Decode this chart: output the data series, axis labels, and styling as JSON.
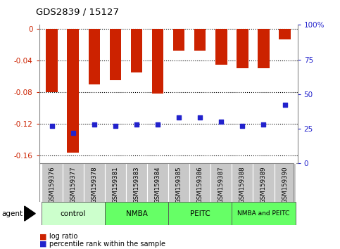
{
  "title": "GDS2839 / 15127",
  "samples": [
    "GSM159376",
    "GSM159377",
    "GSM159378",
    "GSM159381",
    "GSM159383",
    "GSM159384",
    "GSM159385",
    "GSM159386",
    "GSM159387",
    "GSM159388",
    "GSM159389",
    "GSM159390"
  ],
  "log_ratios": [
    -0.08,
    -0.157,
    -0.07,
    -0.065,
    -0.055,
    -0.082,
    -0.028,
    -0.028,
    -0.045,
    -0.05,
    -0.05,
    -0.013
  ],
  "percentile_ranks": [
    27,
    22,
    28,
    27,
    28,
    28,
    33,
    33,
    30,
    27,
    28,
    42
  ],
  "bar_color": "#CC2200",
  "dot_color": "#2222CC",
  "ylim_left": [
    -0.17,
    0.005
  ],
  "ylim_right": [
    0,
    100
  ],
  "yticks_left": [
    0.0,
    -0.04,
    -0.08,
    -0.12,
    -0.16
  ],
  "ytick_labels_left": [
    "0",
    "-0.04",
    "-0.08",
    "-0.12",
    "-0.16"
  ],
  "yticks_right": [
    0,
    25,
    50,
    75,
    100
  ],
  "ytick_labels_right": [
    "0",
    "25",
    "50",
    "75",
    "100%"
  ],
  "group_data": [
    {
      "label": "control",
      "start": 0,
      "end": 3,
      "color": "#CCFFCC"
    },
    {
      "label": "NMBA",
      "start": 3,
      "end": 6,
      "color": "#66FF66"
    },
    {
      "label": "PEITC",
      "start": 6,
      "end": 9,
      "color": "#66FF66"
    },
    {
      "label": "NMBA and PEITC",
      "start": 9,
      "end": 12,
      "color": "#66FF66"
    }
  ],
  "legend_items": [
    {
      "label": "log ratio",
      "color": "#CC2200"
    },
    {
      "label": "percentile rank within the sample",
      "color": "#2222CC"
    }
  ],
  "xlabel_agent": "agent",
  "background_color": "#FFFFFF",
  "tick_label_color_left": "#CC2200",
  "tick_label_color_right": "#2222CC",
  "label_box_color": "#C8C8C8",
  "bar_width": 0.55
}
